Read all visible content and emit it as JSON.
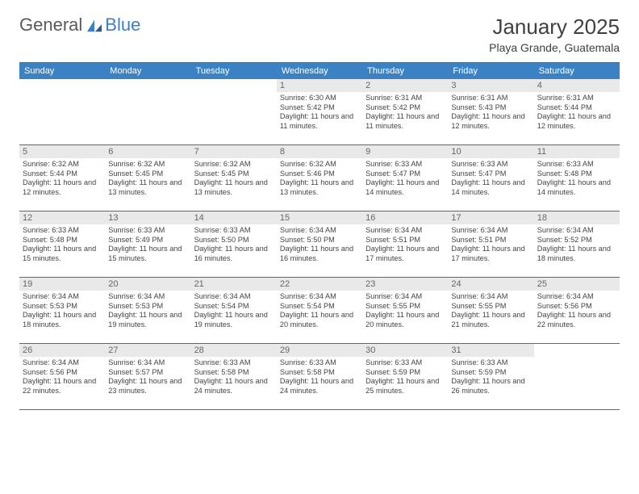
{
  "logo": {
    "general": "General",
    "blue": "Blue"
  },
  "title": {
    "month": "January 2025",
    "location": "Playa Grande, Guatemala"
  },
  "colors": {
    "header_bg": "#3b82c4",
    "border": "#2f72b5",
    "daynum_bg": "#e9e9e9",
    "text": "#444444"
  },
  "day_headers": [
    "Sunday",
    "Monday",
    "Tuesday",
    "Wednesday",
    "Thursday",
    "Friday",
    "Saturday"
  ],
  "weeks": [
    [
      {
        "n": "",
        "sr": "",
        "ss": "",
        "dl": ""
      },
      {
        "n": "",
        "sr": "",
        "ss": "",
        "dl": ""
      },
      {
        "n": "",
        "sr": "",
        "ss": "",
        "dl": ""
      },
      {
        "n": "1",
        "sr": "6:30 AM",
        "ss": "5:42 PM",
        "dl": "11 hours and 11 minutes."
      },
      {
        "n": "2",
        "sr": "6:31 AM",
        "ss": "5:42 PM",
        "dl": "11 hours and 11 minutes."
      },
      {
        "n": "3",
        "sr": "6:31 AM",
        "ss": "5:43 PM",
        "dl": "11 hours and 12 minutes."
      },
      {
        "n": "4",
        "sr": "6:31 AM",
        "ss": "5:44 PM",
        "dl": "11 hours and 12 minutes."
      }
    ],
    [
      {
        "n": "5",
        "sr": "6:32 AM",
        "ss": "5:44 PM",
        "dl": "11 hours and 12 minutes."
      },
      {
        "n": "6",
        "sr": "6:32 AM",
        "ss": "5:45 PM",
        "dl": "11 hours and 13 minutes."
      },
      {
        "n": "7",
        "sr": "6:32 AM",
        "ss": "5:45 PM",
        "dl": "11 hours and 13 minutes."
      },
      {
        "n": "8",
        "sr": "6:32 AM",
        "ss": "5:46 PM",
        "dl": "11 hours and 13 minutes."
      },
      {
        "n": "9",
        "sr": "6:33 AM",
        "ss": "5:47 PM",
        "dl": "11 hours and 14 minutes."
      },
      {
        "n": "10",
        "sr": "6:33 AM",
        "ss": "5:47 PM",
        "dl": "11 hours and 14 minutes."
      },
      {
        "n": "11",
        "sr": "6:33 AM",
        "ss": "5:48 PM",
        "dl": "11 hours and 14 minutes."
      }
    ],
    [
      {
        "n": "12",
        "sr": "6:33 AM",
        "ss": "5:48 PM",
        "dl": "11 hours and 15 minutes."
      },
      {
        "n": "13",
        "sr": "6:33 AM",
        "ss": "5:49 PM",
        "dl": "11 hours and 15 minutes."
      },
      {
        "n": "14",
        "sr": "6:33 AM",
        "ss": "5:50 PM",
        "dl": "11 hours and 16 minutes."
      },
      {
        "n": "15",
        "sr": "6:34 AM",
        "ss": "5:50 PM",
        "dl": "11 hours and 16 minutes."
      },
      {
        "n": "16",
        "sr": "6:34 AM",
        "ss": "5:51 PM",
        "dl": "11 hours and 17 minutes."
      },
      {
        "n": "17",
        "sr": "6:34 AM",
        "ss": "5:51 PM",
        "dl": "11 hours and 17 minutes."
      },
      {
        "n": "18",
        "sr": "6:34 AM",
        "ss": "5:52 PM",
        "dl": "11 hours and 18 minutes."
      }
    ],
    [
      {
        "n": "19",
        "sr": "6:34 AM",
        "ss": "5:53 PM",
        "dl": "11 hours and 18 minutes."
      },
      {
        "n": "20",
        "sr": "6:34 AM",
        "ss": "5:53 PM",
        "dl": "11 hours and 19 minutes."
      },
      {
        "n": "21",
        "sr": "6:34 AM",
        "ss": "5:54 PM",
        "dl": "11 hours and 19 minutes."
      },
      {
        "n": "22",
        "sr": "6:34 AM",
        "ss": "5:54 PM",
        "dl": "11 hours and 20 minutes."
      },
      {
        "n": "23",
        "sr": "6:34 AM",
        "ss": "5:55 PM",
        "dl": "11 hours and 20 minutes."
      },
      {
        "n": "24",
        "sr": "6:34 AM",
        "ss": "5:55 PM",
        "dl": "11 hours and 21 minutes."
      },
      {
        "n": "25",
        "sr": "6:34 AM",
        "ss": "5:56 PM",
        "dl": "11 hours and 22 minutes."
      }
    ],
    [
      {
        "n": "26",
        "sr": "6:34 AM",
        "ss": "5:56 PM",
        "dl": "11 hours and 22 minutes."
      },
      {
        "n": "27",
        "sr": "6:34 AM",
        "ss": "5:57 PM",
        "dl": "11 hours and 23 minutes."
      },
      {
        "n": "28",
        "sr": "6:33 AM",
        "ss": "5:58 PM",
        "dl": "11 hours and 24 minutes."
      },
      {
        "n": "29",
        "sr": "6:33 AM",
        "ss": "5:58 PM",
        "dl": "11 hours and 24 minutes."
      },
      {
        "n": "30",
        "sr": "6:33 AM",
        "ss": "5:59 PM",
        "dl": "11 hours and 25 minutes."
      },
      {
        "n": "31",
        "sr": "6:33 AM",
        "ss": "5:59 PM",
        "dl": "11 hours and 26 minutes."
      },
      {
        "n": "",
        "sr": "",
        "ss": "",
        "dl": ""
      }
    ]
  ],
  "labels": {
    "sunrise": "Sunrise:",
    "sunset": "Sunset:",
    "daylight": "Daylight:"
  }
}
